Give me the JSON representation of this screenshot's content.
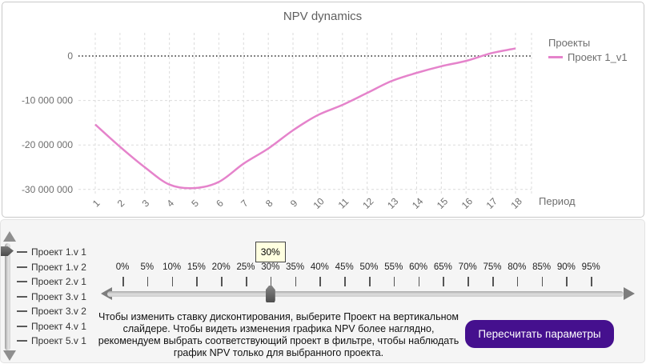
{
  "chart": {
    "title": "NPV dynamics",
    "x_axis_label": "Период",
    "legend_title": "Проекты",
    "series_label": "Проект 1_v1",
    "line_color": "#e583cb",
    "y_tick_labels": [
      "0",
      "-10 000 000",
      "-20 000 000",
      "-30 000 000"
    ]
  },
  "chart_data": {
    "type": "line",
    "title": "NPV dynamics",
    "xlabel": "Период",
    "ylabel": "",
    "x": [
      1,
      2,
      3,
      4,
      5,
      6,
      7,
      8,
      9,
      10,
      11,
      12,
      13,
      14,
      15,
      16,
      17,
      18
    ],
    "series": [
      {
        "name": "Проект 1_v1",
        "color": "#e583cb",
        "values": [
          -15400000,
          -20400000,
          -25000000,
          -28900000,
          -29700000,
          -28300000,
          -24200000,
          -20800000,
          -16700000,
          -13300000,
          -11000000,
          -8300000,
          -5600000,
          -3800000,
          -2300000,
          -1100000,
          600000,
          1700000
        ]
      }
    ],
    "yticks": [
      0,
      -10000000,
      -20000000,
      -30000000
    ],
    "ytick_labels": [
      "0",
      "-10 000 000",
      "-20 000 000",
      "-30 000 000"
    ],
    "ylim": [
      -31500000,
      5200000
    ],
    "legend_title": "Проекты",
    "legend_position": "right",
    "grid": true
  },
  "vertical_slider": {
    "items": [
      "Проект 1.v 1",
      "Проект 1.v 2",
      "Проект 2.v 1",
      "Проект 3.v 1",
      "Проект 3.v 2",
      "Проект 4.v 1",
      "Проект 5.v 1"
    ],
    "selected_index": 0
  },
  "discount_slider": {
    "tick_labels": [
      "0%",
      "5%",
      "10%",
      "15%",
      "20%",
      "25%",
      "30%",
      "35%",
      "40%",
      "45%",
      "50%",
      "55%",
      "60%",
      "65%",
      "70%",
      "75%",
      "80%",
      "85%",
      "90%",
      "95%"
    ],
    "value": "30%",
    "tooltip": "30%",
    "selected_tick_index": 6
  },
  "instructions_text": "Чтобы изменить ставку дисконтирования, выберите Проект на вертикальном слайдере. Чтобы видеть изменения графика NPV более наглядно, рекомендуем выбрать соответствующий проект в фильтре, чтобы наблюдать график NPV только для выбранного проекта.",
  "recalculate_button": {
    "label": "Пересчитать параметры",
    "color": "#45108e"
  }
}
